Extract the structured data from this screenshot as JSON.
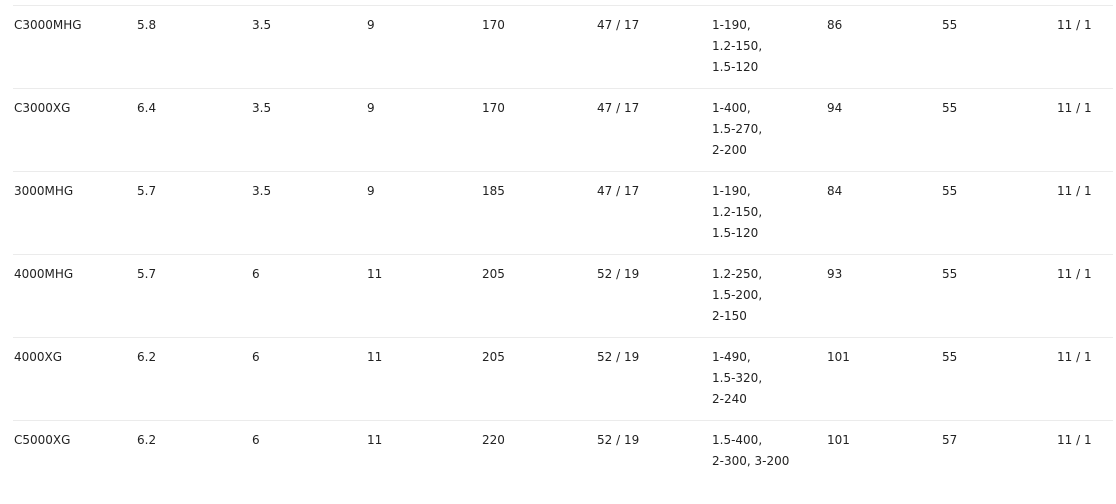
{
  "table": {
    "rows": [
      [
        "C3000MHG",
        "5.8",
        "3.5",
        "9",
        "170",
        "47 / 17",
        "1-190,\n1.2-150,\n1.5-120",
        "86",
        "55",
        "11 / 1"
      ],
      [
        "C3000XG",
        "6.4",
        "3.5",
        "9",
        "170",
        "47 / 17",
        "1-400,\n1.5-270,\n2-200",
        "94",
        "55",
        "11 / 1"
      ],
      [
        "3000MHG",
        "5.7",
        "3.5",
        "9",
        "185",
        "47 / 17",
        "1-190,\n1.2-150,\n1.5-120",
        "84",
        "55",
        "11 / 1"
      ],
      [
        "4000MHG",
        "5.7",
        "6",
        "11",
        "205",
        "52 / 19",
        "1.2-250,\n1.5-200,\n2-150",
        "93",
        "55",
        "11 / 1"
      ],
      [
        "4000XG",
        "6.2",
        "6",
        "11",
        "205",
        "52 / 19",
        "1-490,\n1.5-320,\n2-240",
        "101",
        "55",
        "11 / 1"
      ],
      [
        "C5000XG",
        "6.2",
        "6",
        "11",
        "220",
        "52 / 19",
        "1.5-400,\n2-300, 3-200",
        "101",
        "57",
        "11 / 1"
      ]
    ]
  }
}
